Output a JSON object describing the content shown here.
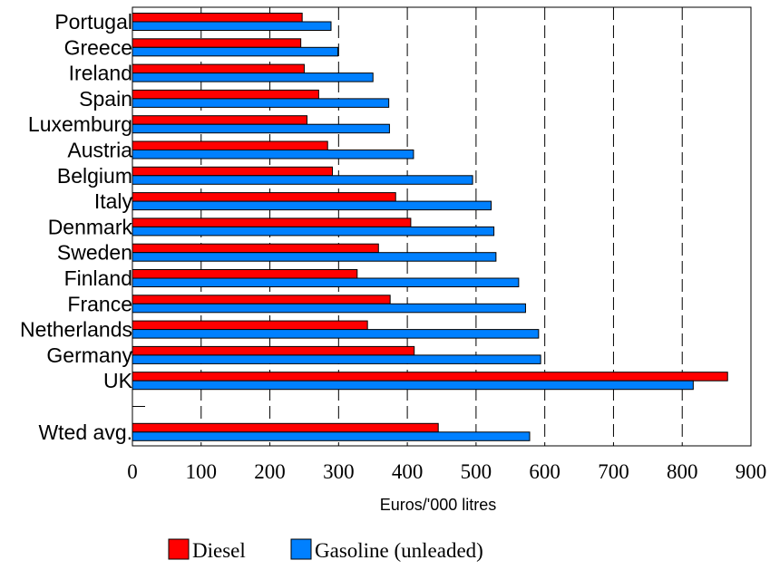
{
  "chart_data": {
    "type": "bar",
    "orientation": "horizontal",
    "categories": [
      "Portugal",
      "Greece",
      "Ireland",
      "Spain",
      "Luxemburg",
      "Austria",
      "Belgium",
      "Italy",
      "Denmark",
      "Sweden",
      "Finland",
      "France",
      "Netherlands",
      "Germany",
      "UK",
      "",
      "Wted avg."
    ],
    "series": [
      {
        "name": "Diesel",
        "color": "#ff0000",
        "values": [
          247,
          245,
          250,
          271,
          254,
          284,
          291,
          383,
          405,
          358,
          327,
          375,
          342,
          410,
          866,
          null,
          445
        ]
      },
      {
        "name": "Gasoline (unleaded)",
        "color": "#0080ff",
        "values": [
          289,
          299,
          350,
          373,
          374,
          409,
          495,
          522,
          526,
          529,
          562,
          572,
          591,
          594,
          816,
          null,
          578
        ]
      }
    ],
    "xlabel": "Euros/'000 litres",
    "xlim": [
      0,
      900
    ],
    "xticks": [
      "0",
      "100",
      "200",
      "300",
      "400",
      "500",
      "600",
      "700",
      "800",
      "900"
    ],
    "grid": "vertical-dashed",
    "legend_position": "bottom"
  }
}
